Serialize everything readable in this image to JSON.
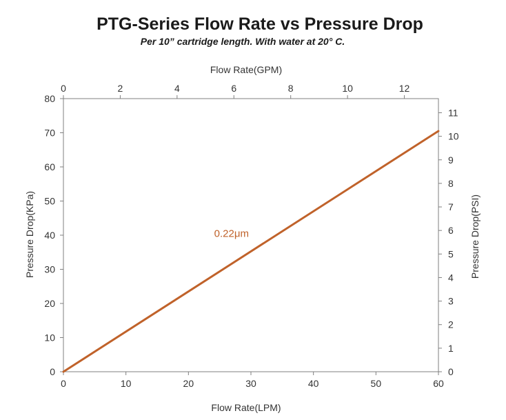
{
  "chart_data": {
    "type": "line",
    "title": "PTG-Series Flow Rate vs Pressure Drop",
    "subtitle": "Per 10” cartridge length. With water at 20° C.",
    "xlabel": "Flow Rate(LPM)",
    "ylabel": "Pressure Drop(KPa)",
    "x2label": "Flow Rate(GPM)",
    "y2label": "Pressure Drop(PSI)",
    "xlim": [
      0,
      60
    ],
    "ylim": [
      0,
      80
    ],
    "x2lim": [
      0,
      13.2
    ],
    "y2lim": [
      0,
      11.6
    ],
    "x_ticks": [
      "0",
      "10",
      "20",
      "30",
      "40",
      "50",
      "60"
    ],
    "y_ticks": [
      "0",
      "10",
      "20",
      "30",
      "40",
      "50",
      "60",
      "70",
      "80"
    ],
    "x2_ticks": [
      "0",
      "2",
      "4",
      "6",
      "8",
      "10",
      "12"
    ],
    "y2_ticks": [
      "0",
      "1",
      "2",
      "3",
      "4",
      "5",
      "6",
      "7",
      "8",
      "9",
      "10",
      "11"
    ],
    "grid": false,
    "series": [
      {
        "name": "0.22μm",
        "color": "#c0622a",
        "x": [
          0,
          60
        ],
        "y": [
          0,
          70.5
        ]
      }
    ]
  }
}
